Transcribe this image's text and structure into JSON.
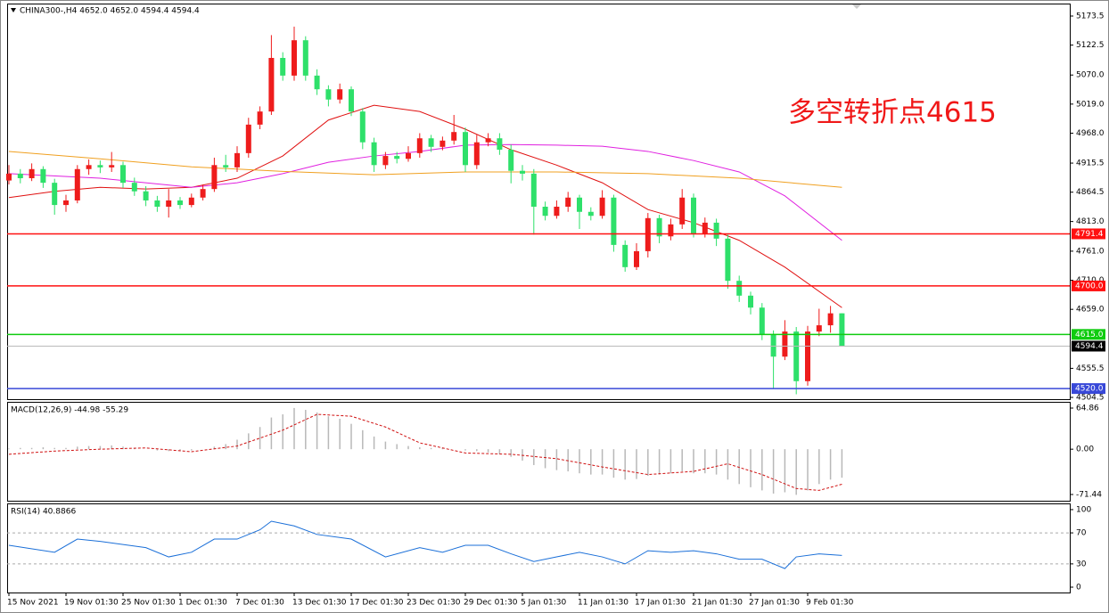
{
  "chart_data": [
    {
      "type": "candlestick",
      "title": "CHINA300-,H4  4652.0 4652.0 4594.4 4594.4",
      "annotation": "多空转折点4615",
      "up_color": "#ee1c1c",
      "down_color": "#2ee06a",
      "ylim": [
        4501.4,
        5193.8
      ],
      "yticks": [
        5173.5,
        5122.5,
        {
          "value": 5070,
          "label": "5070.0"
        },
        {
          "value": 5019,
          "label": "5019.0"
        },
        {
          "value": 4968,
          "label": "4968.0"
        },
        4915.5,
        4864.5,
        {
          "value": 4813,
          "label": "4813.0"
        },
        {
          "value": 4761,
          "label": "4761.0"
        },
        {
          "value": 4710,
          "label": "4710.0"
        },
        {
          "value": 4659,
          "label": "4659.0"
        },
        4555.5,
        4504.5
      ],
      "candles": [
        [
          4885,
          4912,
          4878,
          4897
        ],
        [
          4897,
          4905,
          4880,
          4889
        ],
        [
          4889,
          4915,
          4884,
          4905
        ],
        [
          4905,
          4910,
          4872,
          4881
        ],
        [
          4881,
          4888,
          4825,
          4842
        ],
        [
          4842,
          4860,
          4830,
          4850
        ],
        [
          4850,
          4912,
          4845,
          4905
        ],
        [
          4905,
          4922,
          4895,
          4912
        ],
        [
          4912,
          4920,
          4898,
          4908
        ],
        [
          4908,
          4935,
          4900,
          4912
        ],
        [
          4912,
          4918,
          4872,
          4881
        ],
        [
          4881,
          4890,
          4858,
          4866
        ],
        [
          4866,
          4875,
          4840,
          4850
        ],
        [
          4850,
          4858,
          4830,
          4839
        ],
        [
          4839,
          4870,
          4820,
          4850
        ],
        [
          4850,
          4856,
          4835,
          4842
        ],
        [
          4842,
          4862,
          4838,
          4855
        ],
        [
          4855,
          4878,
          4850,
          4870
        ],
        [
          4870,
          4925,
          4865,
          4912
        ],
        [
          4912,
          4930,
          4900,
          4908
        ],
        [
          4908,
          4945,
          4900,
          4933
        ],
        [
          4933,
          4995,
          4925,
          4983
        ],
        [
          4983,
          5015,
          4975,
          5006
        ],
        [
          5006,
          5140,
          5000,
          5100
        ],
        [
          5100,
          5110,
          5060,
          5069
        ],
        [
          5069,
          5155,
          5060,
          5131
        ],
        [
          5131,
          5138,
          5060,
          5069
        ],
        [
          5069,
          5080,
          5035,
          5045
        ],
        [
          5045,
          5052,
          5015,
          5027
        ],
        [
          5027,
          5055,
          5020,
          5045
        ],
        [
          5045,
          5050,
          4998,
          5006
        ],
        [
          5006,
          5012,
          4940,
          4952
        ],
        [
          4952,
          4960,
          4900,
          4912
        ],
        [
          4912,
          4935,
          4905,
          4928
        ],
        [
          4928,
          4935,
          4915,
          4923
        ],
        [
          4923,
          4945,
          4918,
          4933
        ],
        [
          4933,
          4968,
          4925,
          4959
        ],
        [
          4959,
          4965,
          4935,
          4944
        ],
        [
          4944,
          4962,
          4938,
          4955
        ],
        [
          4955,
          5000,
          4948,
          4970
        ],
        [
          4970,
          4978,
          4900,
          4912
        ],
        [
          4912,
          4965,
          4905,
          4952
        ],
        [
          4952,
          4968,
          4945,
          4959
        ],
        [
          4959,
          4968,
          4930,
          4939
        ],
        [
          4939,
          4948,
          4880,
          4902
        ],
        [
          4902,
          4912,
          4885,
          4897
        ],
        [
          4897,
          4905,
          4790,
          4839
        ],
        [
          4839,
          4848,
          4815,
          4823
        ],
        [
          4823,
          4850,
          4818,
          4839
        ],
        [
          4839,
          4865,
          4830,
          4855
        ],
        [
          4855,
          4860,
          4800,
          4830
        ],
        [
          4830,
          4838,
          4815,
          4823
        ],
        [
          4823,
          4868,
          4818,
          4855
        ],
        [
          4855,
          4860,
          4760,
          4772
        ],
        [
          4772,
          4780,
          4725,
          4733
        ],
        [
          4733,
          4775,
          4728,
          4761
        ],
        [
          4761,
          4828,
          4750,
          4819
        ],
        [
          4819,
          4825,
          4775,
          4787
        ],
        [
          4787,
          4818,
          4780,
          4808
        ],
        [
          4808,
          4870,
          4800,
          4855
        ],
        [
          4855,
          4862,
          4785,
          4792
        ],
        [
          4792,
          4820,
          4785,
          4811
        ],
        [
          4811,
          4818,
          4770,
          4783
        ],
        [
          4783,
          4790,
          4695,
          4709
        ],
        [
          4709,
          4718,
          4672,
          4683
        ],
        [
          4683,
          4690,
          4650,
          4662
        ],
        [
          4662,
          4670,
          4605,
          4615
        ],
        [
          4615,
          4622,
          4520,
          4576
        ],
        [
          4576,
          4640,
          4570,
          4620
        ],
        [
          4620,
          4628,
          4510,
          4533
        ],
        [
          4533,
          4630,
          4525,
          4620
        ],
        [
          4620,
          4660,
          4612,
          4631
        ],
        [
          4631,
          4665,
          4618,
          4652
        ],
        [
          4652,
          4652,
          4594.4,
          4594.4
        ]
      ],
      "lines": [
        {
          "color": "#e01010",
          "x": [
            0,
            4,
            8,
            12,
            16,
            20,
            24,
            28,
            32,
            36,
            40,
            44,
            48,
            52,
            56,
            60,
            64,
            68,
            73
          ],
          "values": [
            4855,
            4866,
            4873,
            4870,
            4873,
            4889,
            4928,
            4991,
            5017,
            5006,
            4975,
            4939,
            4912,
            4881,
            4834,
            4811,
            4780,
            4733,
            4662
          ]
        },
        {
          "color": "#e020e0",
          "x": [
            0,
            8,
            16,
            20,
            24,
            28,
            32,
            36,
            40,
            44,
            48,
            52,
            56,
            60,
            64,
            68,
            73
          ],
          "values": [
            4897,
            4889,
            4873,
            4881,
            4897,
            4917,
            4928,
            4936,
            4947,
            4948,
            4947,
            4945,
            4936,
            4920,
            4900,
            4858,
            4780
          ]
        },
        {
          "color": "#f0a020",
          "x": [
            0,
            8,
            16,
            24,
            32,
            40,
            48,
            56,
            64,
            73
          ],
          "values": [
            4936,
            4923,
            4909,
            4901,
            4895,
            4900,
            4900,
            4897,
            4889,
            4873
          ]
        }
      ],
      "levels": [
        {
          "value": 4791.4,
          "color": "#ff1010"
        },
        {
          "value": 4700,
          "label": "4700.0",
          "color": "#ff1010"
        },
        {
          "value": 4615,
          "label": "4615.0",
          "color": "#10cc10"
        },
        {
          "value": 4520,
          "label": "4520.0",
          "color": "#3848d8"
        }
      ],
      "current_price": 4594.4
    },
    {
      "type": "macd",
      "title": "MACD(12,26,9) -44.98 -55.29",
      "ylim": [
        -81.3,
        73.3
      ],
      "yticks": [
        64.86,
        {
          "value": 0,
          "label": "0.00"
        },
        -71.44
      ],
      "histogram": {
        "color": "#b8b8b8",
        "values": [
          1,
          2,
          2,
          3,
          2,
          2,
          4,
          5,
          5,
          6,
          4,
          2,
          0,
          -2,
          -3,
          -3,
          -2,
          0,
          4,
          8,
          15,
          25,
          35,
          50,
          55,
          65,
          62,
          58,
          52,
          48,
          40,
          30,
          20,
          12,
          8,
          5,
          3,
          2,
          2,
          0,
          -2,
          -3,
          -5,
          -8,
          -12,
          -18,
          -25,
          -30,
          -33,
          -35,
          -38,
          -40,
          -40,
          -45,
          -48,
          -47,
          -42,
          -40,
          -38,
          -35,
          -38,
          -38,
          -40,
          -48,
          -55,
          -60,
          -65,
          -70,
          -68,
          -72,
          -65,
          -55,
          -48,
          -44.98
        ]
      },
      "signal": {
        "color": "#d01010",
        "x": [
          0,
          4,
          8,
          12,
          16,
          20,
          24,
          27,
          30,
          33,
          36,
          40,
          44,
          48,
          52,
          56,
          60,
          63,
          66,
          69,
          71,
          73
        ],
        "values": [
          -8,
          -3,
          0,
          2,
          -4,
          5,
          30,
          55,
          52,
          35,
          10,
          -6,
          -8,
          -15,
          -28,
          -40,
          -35,
          -23,
          -40,
          -62,
          -65,
          -55.29
        ]
      }
    },
    {
      "type": "line",
      "title": "RSI(14) 40.8866",
      "ylim": [
        -6.9,
        108
      ],
      "yticks": [
        100,
        70,
        30,
        0
      ],
      "levels": [
        70,
        30
      ],
      "color": "#1a6fd8",
      "x": [
        0,
        4,
        6,
        8,
        12,
        14,
        16,
        18,
        20,
        22,
        23,
        25,
        27,
        30,
        33,
        36,
        38,
        40,
        42,
        44,
        46,
        48,
        50,
        52,
        54,
        56,
        58,
        60,
        62,
        64,
        66,
        68,
        69,
        71,
        73
      ],
      "values": [
        54,
        45,
        62,
        59,
        51,
        39,
        45,
        62,
        62,
        74,
        85,
        79,
        68,
        62,
        39,
        51,
        45,
        54,
        54,
        43,
        33,
        39,
        45,
        39,
        30,
        47,
        45,
        47,
        43,
        36,
        36,
        24,
        39,
        43,
        40.8866
      ],
      "categories": [
        "15 Nov 2021",
        null,
        null,
        null,
        null,
        "19 Nov 01:30",
        null,
        null,
        null,
        null,
        "25 Nov 01:30",
        null,
        null,
        null,
        null,
        "1 Dec 01:30",
        null,
        null,
        null,
        null,
        "7 Dec 01:30",
        null,
        null,
        null,
        null,
        "13 Dec 01:30",
        null,
        null,
        null,
        null,
        "17 Dec 01:30",
        null,
        null,
        null,
        null,
        "23 Dec 01:30",
        null,
        null,
        null,
        null,
        "29 Dec 01:30",
        null,
        null,
        null,
        null,
        "5 Jan 01:30",
        null,
        null,
        null,
        null,
        "11 Jan 01:30",
        null,
        null,
        null,
        null,
        "17 Jan 01:30",
        null,
        null,
        null,
        null,
        "21 Jan 01:30",
        null,
        null,
        null,
        null,
        "27 Jan 01:30",
        null,
        null,
        null,
        null,
        "9 Feb 01:30",
        null,
        null,
        null
      ]
    }
  ]
}
